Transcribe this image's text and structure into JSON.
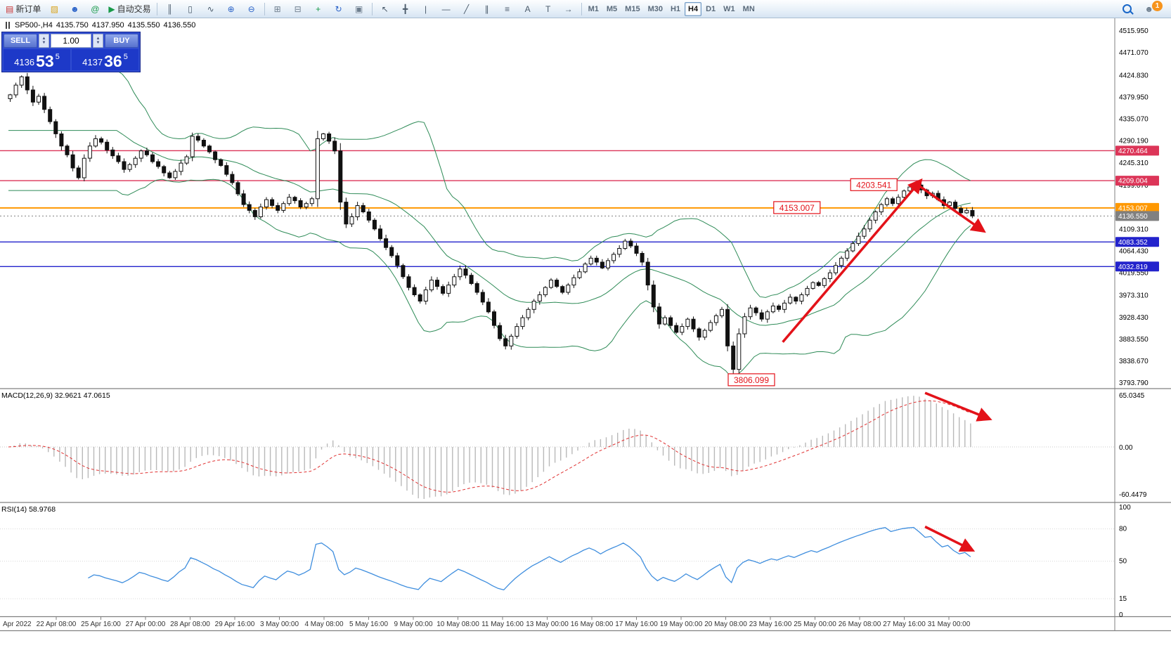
{
  "toolbar": {
    "new_order_label": "新订单",
    "auto_trading_label": "自动交易",
    "timeframes": [
      "M1",
      "M5",
      "M15",
      "M30",
      "H1",
      "H4",
      "D1",
      "W1",
      "MN"
    ],
    "active_timeframe": "H4",
    "notification_count": "1"
  },
  "icons": {
    "new_order": "▤",
    "profiles": "▨",
    "terminal": "☻",
    "community": "@",
    "autotrade": "▶",
    "bars": "║",
    "candles": "▯",
    "line_chart": "∿",
    "zoom_in": "⊕",
    "zoom_out": "⊖",
    "tile_windows": "⊞",
    "cascade_windows": "⊟",
    "add_indicator": "+",
    "auto_scroll": "↻",
    "chart_shift": "▣",
    "cursor": "↖",
    "crosshair": "╋",
    "vertical_line": "|",
    "horizontal_line": "—",
    "trendline": "╱",
    "channel": "∥",
    "fibonacci": "≡",
    "text": "A",
    "text_label": "T",
    "arrows_tool": "→",
    "person": "☻",
    "spin_up": "▲",
    "spin_down": "▼"
  },
  "chart_header": {
    "symbol_timeframe": "SP500-,H4",
    "open": "4135.750",
    "high": "4137.950",
    "low": "4135.550",
    "close": "4136.550"
  },
  "order_panel": {
    "sell_label": "SELL",
    "buy_label": "BUY",
    "volume": "1.00",
    "sell_price_prefix": "4136",
    "sell_price_big": "53",
    "sell_price_sup": "5",
    "buy_price_prefix": "4137",
    "buy_price_big": "36",
    "buy_price_sup": "5"
  },
  "price_axis": {
    "labels": [
      "4515.950",
      "4471.070",
      "4424.830",
      "4379.950",
      "4335.070",
      "4290.190",
      "4245.310",
      "4199.070",
      "4109.310",
      "4064.430",
      "4019.550",
      "3973.310",
      "3928.430",
      "3883.550",
      "3838.670",
      "3793.790"
    ]
  },
  "chart_data": {
    "type": "candlestick",
    "symbol": "SP500-",
    "timeframe": "H4",
    "price_scale": {
      "min": 3784,
      "max": 4542
    },
    "x_labels": [
      "Apr 2022",
      "22 Apr 08:00",
      "25 Apr 16:00",
      "27 Apr 00:00",
      "28 Apr 08:00",
      "29 Apr 16:00",
      "3 May 00:00",
      "4 May 08:00",
      "5 May 16:00",
      "9 May 00:00",
      "10 May 08:00",
      "11 May 16:00",
      "13 May 00:00",
      "16 May 08:00",
      "17 May 16:00",
      "19 May 00:00",
      "20 May 08:00",
      "23 May 16:00",
      "25 May 00:00",
      "26 May 08:00",
      "27 May 16:00",
      "31 May 00:00"
    ],
    "closes": [
      4385,
      4405,
      4422,
      4395,
      4370,
      4382,
      4355,
      4330,
      4305,
      4280,
      4262,
      4235,
      4215,
      4255,
      4280,
      4295,
      4288,
      4272,
      4260,
      4248,
      4232,
      4242,
      4255,
      4270,
      4262,
      4248,
      4238,
      4225,
      4215,
      4228,
      4245,
      4258,
      4300,
      4292,
      4280,
      4268,
      4252,
      4240,
      4222,
      4205,
      4182,
      4160,
      4148,
      4135,
      4155,
      4170,
      4158,
      4148,
      4162,
      4175,
      4168,
      4155,
      4162,
      4172,
      4295,
      4305,
      4290,
      4270,
      4165,
      4120,
      4135,
      4158,
      4145,
      4128,
      4110,
      4090,
      4072,
      4055,
      4035,
      4012,
      3990,
      3975,
      3962,
      3985,
      4005,
      3992,
      3978,
      3995,
      4012,
      4028,
      4015,
      3998,
      3980,
      3960,
      3940,
      3912,
      3885,
      3870,
      3890,
      3910,
      3928,
      3945,
      3962,
      3975,
      3990,
      4005,
      3992,
      3980,
      3995,
      4010,
      4022,
      4038,
      4050,
      4042,
      4030,
      4045,
      4058,
      4070,
      4085,
      4075,
      4060,
      4042,
      3995,
      3950,
      3915,
      3928,
      3912,
      3898,
      3910,
      3925,
      3905,
      3888,
      3902,
      3918,
      3932,
      3945,
      3870,
      3822,
      3895,
      3930,
      3948,
      3938,
      3925,
      3940,
      3952,
      3945,
      3958,
      3970,
      3962,
      3975,
      3988,
      4000,
      3994,
      4008,
      4020,
      4035,
      4050,
      4065,
      4080,
      4095,
      4110,
      4128,
      4145,
      4160,
      4172,
      4162,
      4175,
      4188,
      4196,
      4200,
      4190,
      4178,
      4183,
      4170,
      4158,
      4165,
      4152,
      4143,
      4148,
      4136.55
    ],
    "wick_overrides": {
      "2": {
        "high": 4424.8
      },
      "55": {
        "high": 4307
      },
      "127": {
        "low": 3806.099
      },
      "159": {
        "high": 4203.541
      }
    },
    "bollinger": {
      "period": 20,
      "deviation": 2,
      "color": "#2e8b57"
    },
    "hlines": [
      {
        "price": 4270.464,
        "label": "4270.464",
        "color": "#dc3558",
        "style": "solid"
      },
      {
        "price": 4209.004,
        "label": "4209.004",
        "color": "#dc3558",
        "style": "solid"
      },
      {
        "price": 4153.007,
        "label": "4153.007",
        "color": "#ff9800",
        "style": "solid"
      },
      {
        "price": 4136.55,
        "label": "4136.550",
        "color": "#808080",
        "style": "dot"
      },
      {
        "price": 4083.352,
        "label": "4083.352",
        "color": "#2323cc",
        "style": "solid"
      },
      {
        "price": 4032.819,
        "label": "4032.819",
        "color": "#2323cc",
        "style": "solid"
      }
    ],
    "macd": {
      "label": "MACD(12,26,9)",
      "value_text": "32.9621 47.0615",
      "fast": 12,
      "slow": 26,
      "signal": 9,
      "axis": [
        "65.0345",
        "0.00",
        "-60.4479"
      ],
      "histogram_color": "#b9b9b9",
      "signal_color": "#e03131"
    },
    "rsi": {
      "label": "RSI(14)",
      "value_text": "58.9768",
      "period": 14,
      "axis": [
        "100",
        "80",
        "50",
        "15",
        "0"
      ],
      "levels": [
        80,
        50,
        15
      ],
      "line_color": "#3f8ede"
    },
    "annotations": {
      "color": "#e31219",
      "price_labels": [
        {
          "text": "4203.541",
          "bar": 152,
          "price": 4200
        },
        {
          "text": "4153.007",
          "bar": 138.5,
          "price": 4153
        },
        {
          "text": "3806.099",
          "bar": 130.5,
          "price": 3800
        }
      ],
      "arrows": [
        {
          "panel": "price",
          "from_bar": 136,
          "from_val": 3878,
          "to_bar": 160,
          "to_val": 4206
        },
        {
          "panel": "price",
          "from_bar": 160,
          "from_val": 4198,
          "to_bar": 171,
          "to_val": 4108
        },
        {
          "panel": "macd",
          "from_bar": 161,
          "from_val": 62,
          "to_bar": 172,
          "to_val": 33
        },
        {
          "panel": "rsi",
          "from_bar": 161,
          "from_val": 82,
          "to_bar": 169,
          "to_val": 61
        }
      ]
    }
  }
}
